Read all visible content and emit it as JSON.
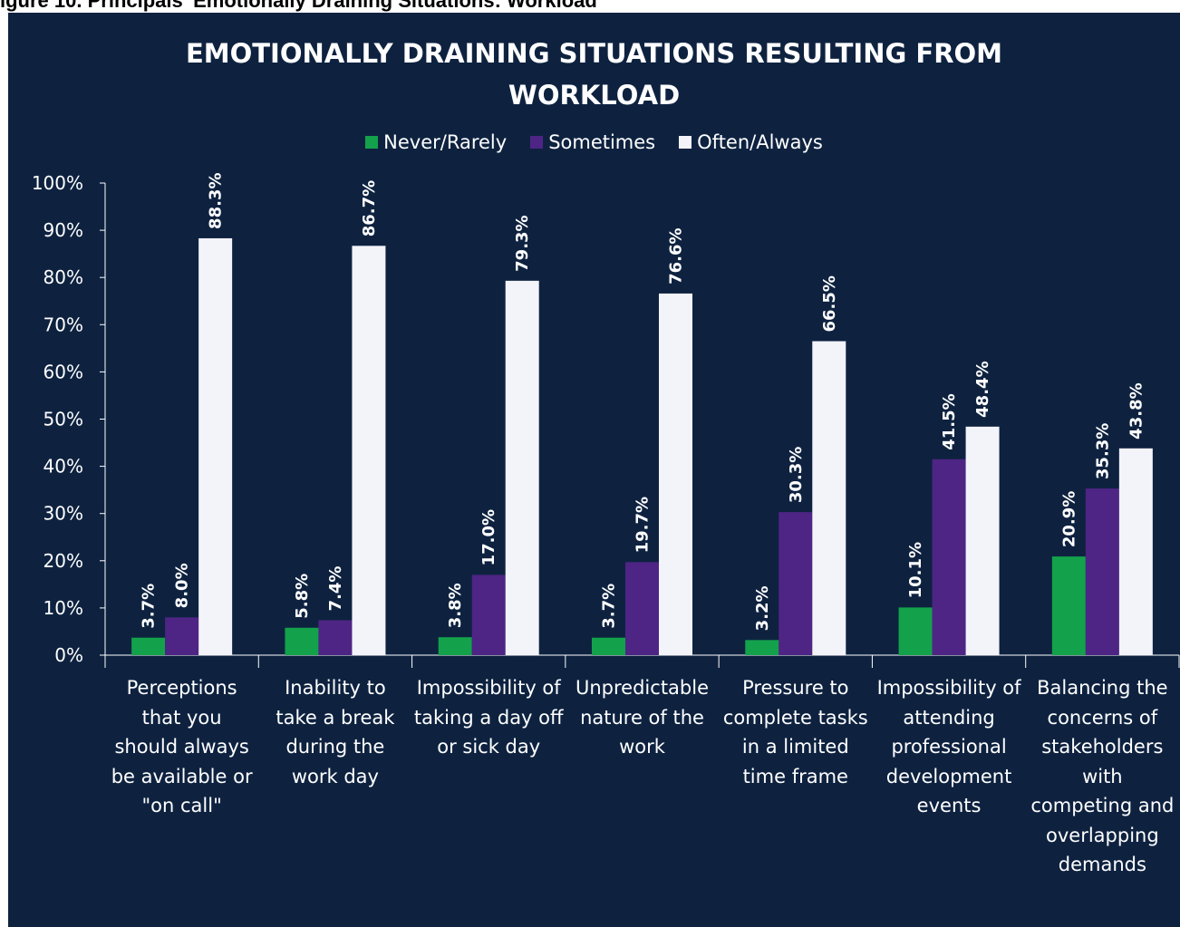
{
  "caption": "igure 10. Principals' Emotionally Draining Situations: Workload",
  "chart_data": {
    "type": "bar",
    "title_lines": [
      "EMOTIONALLY DRAINING SITUATIONS RESULTING FROM",
      "WORKLOAD"
    ],
    "categories": [
      "Perceptions that you should always be available or \"on call\"",
      "Inability to take a break during the work day",
      "Impossibility of taking a day off or sick day",
      "Unpredictable nature of the work",
      "Pressure to complete tasks in a limited time frame",
      "Impossibility of attending professional development events",
      "Balancing the concerns of stakeholders with competing and overlapping demands"
    ],
    "category_lines": [
      [
        "Perceptions",
        "that you",
        "should always",
        "be available or",
        "\"on call\""
      ],
      [
        "Inability to",
        "take a break",
        "during the",
        "work day"
      ],
      [
        "Impossibility of",
        "taking a day off",
        "or sick day"
      ],
      [
        "Unpredictable",
        "nature of the",
        "work"
      ],
      [
        "Pressure to",
        "complete tasks",
        "in a limited",
        "time frame"
      ],
      [
        "Impossibility of",
        "attending",
        "professional",
        "development",
        "events"
      ],
      [
        "Balancing the",
        "concerns of",
        "stakeholders",
        "with",
        "competing and",
        "overlapping",
        "demands"
      ]
    ],
    "series": [
      {
        "name": "Never/Rarely",
        "color": "#13a24b",
        "values": [
          3.7,
          5.8,
          3.8,
          3.7,
          3.2,
          10.1,
          20.9
        ],
        "labels": [
          "3.7%",
          "5.8%",
          "3.8%",
          "3.7%",
          "3.2%",
          "10.1%",
          "20.9%"
        ]
      },
      {
        "name": "Sometimes",
        "color": "#4e2585",
        "values": [
          8.0,
          7.4,
          17.0,
          19.7,
          30.3,
          41.5,
          35.3
        ],
        "labels": [
          "8.0%",
          "7.4%",
          "17.0%",
          "19.7%",
          "30.3%",
          "41.5%",
          "35.3%"
        ]
      },
      {
        "name": "Often/Always",
        "color": "#f3f3fa",
        "values": [
          88.3,
          86.7,
          79.3,
          76.6,
          66.5,
          48.4,
          43.8
        ],
        "labels": [
          "88.3%",
          "86.7%",
          "79.3%",
          "76.6%",
          "66.5%",
          "48.4%",
          "43.8%"
        ]
      }
    ],
    "y_ticks": [
      "0%",
      "10%",
      "20%",
      "30%",
      "40%",
      "50%",
      "60%",
      "70%",
      "80%",
      "90%",
      "100%"
    ],
    "ylim": [
      0,
      100
    ],
    "legend_position": "top",
    "grid": false,
    "colors": {
      "background": "#0e2240",
      "axis": "#ffffff"
    }
  }
}
